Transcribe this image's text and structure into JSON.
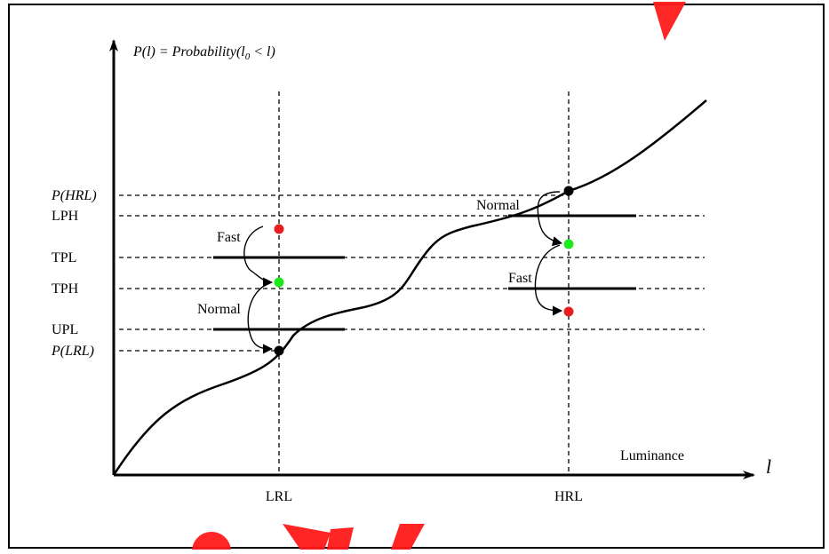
{
  "figure": {
    "y_axis_label": "P(l) = Probability(l",
    "y_axis_label_sub": "0",
    "y_axis_label_tail": " < l)",
    "x_axis_name": "Luminance",
    "x_axis_symbol": "l",
    "x_ticks": [
      "LRL",
      "HRL"
    ],
    "y_ticks": [
      "P(HRL)",
      "LPH",
      "TPL",
      "TPH",
      "UPL",
      "P(LRL)"
    ],
    "annotations": {
      "left_fast": "Fast",
      "left_normal": "Normal",
      "right_normal": "Normal",
      "right_fast": "Fast"
    },
    "colors": {
      "line": "#000000",
      "green_point": "#1ee81e",
      "red_point": "#e81e1e",
      "black_point": "#000000",
      "watermark": "#ff1a1a"
    }
  }
}
